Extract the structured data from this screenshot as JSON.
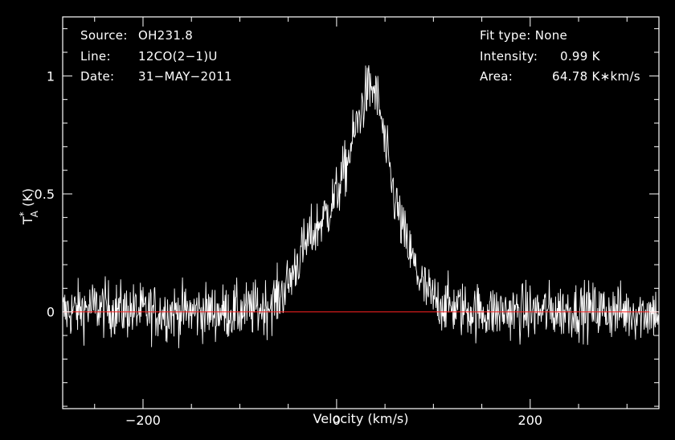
{
  "chart_data": {
    "type": "line",
    "title": "",
    "xlabel": "Velocity (km/s)",
    "ylabel_main": "T",
    "ylabel_sub": "A",
    "ylabel_sup": "*",
    "ylabel_unit": " (K)",
    "xlim": [
      -283,
      333
    ],
    "ylim": [
      -0.41,
      1.25
    ],
    "xticks": [
      {
        "value": -200,
        "label": "−200"
      },
      {
        "value": 0,
        "label": "0"
      },
      {
        "value": 200,
        "label": "200"
      }
    ],
    "yticks": [
      {
        "value": 0,
        "label": "0"
      },
      {
        "value": 0.5,
        "label": "0.5"
      },
      {
        "value": 1,
        "label": "1"
      }
    ],
    "baseline": 0,
    "grid": false,
    "series": [
      {
        "color": "#ffffff",
        "x": [
          -280,
          -250,
          -200,
          -150,
          -100,
          -75,
          -60,
          -50,
          -40,
          -30,
          -20,
          -10,
          0,
          10,
          20,
          30,
          35,
          40,
          45,
          50,
          60,
          70,
          80,
          90,
          100,
          120,
          150,
          200,
          250,
          300,
          330
        ],
        "y": [
          0.0,
          0.02,
          0.0,
          0.0,
          0.0,
          0.02,
          0.06,
          0.12,
          0.22,
          0.3,
          0.36,
          0.42,
          0.5,
          0.62,
          0.78,
          0.92,
          0.95,
          0.93,
          0.85,
          0.7,
          0.48,
          0.32,
          0.2,
          0.1,
          0.05,
          0.02,
          0.0,
          0.0,
          0.01,
          0.0,
          0.0
        ]
      }
    ]
  },
  "info": {
    "source_label": "Source:",
    "source_value": "OH231.8",
    "line_label": "Line:",
    "line_value": "12CO(2−1)U",
    "date_label": "Date:",
    "date_value": "31−MAY−2011",
    "fit_label": "Fit type:",
    "fit_value": "None",
    "intensity_label": "Intensity:",
    "intensity_value": "0.99 K",
    "area_label": "Area:",
    "area_value": "64.78 K∗km/s"
  }
}
